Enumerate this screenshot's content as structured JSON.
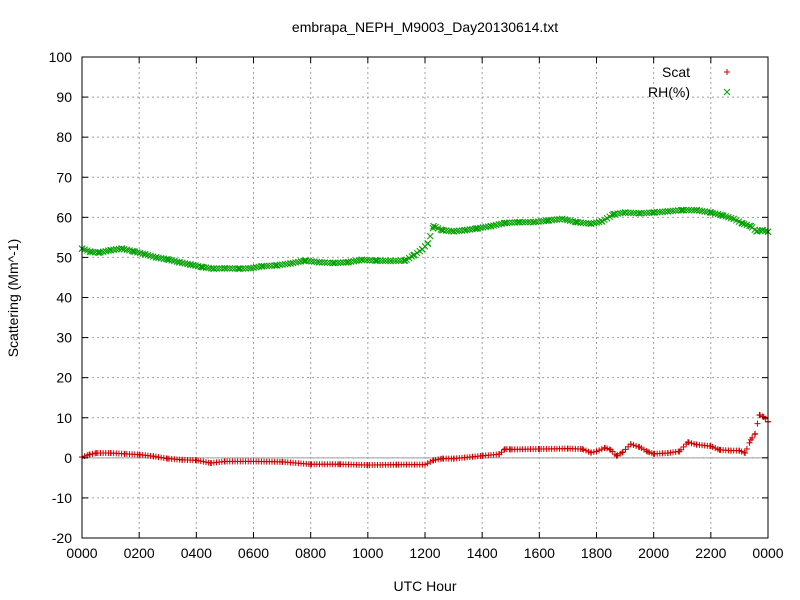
{
  "chart_data": {
    "type": "scatter",
    "title": "embrapa_NEPH_M9003_Day20130614.txt",
    "xlabel": "UTC Hour",
    "ylabel": "Scattering (Mm^-1)",
    "xlim": [
      0,
      24
    ],
    "ylim": [
      -20,
      100
    ],
    "x_ticks": [
      0,
      2,
      4,
      6,
      8,
      10,
      12,
      14,
      16,
      18,
      20,
      22,
      24
    ],
    "x_tick_labels": [
      "0000",
      "0200",
      "0400",
      "0600",
      "0800",
      "1000",
      "1200",
      "1400",
      "1600",
      "1800",
      "2000",
      "2200",
      "0000"
    ],
    "y_ticks": [
      -20,
      -10,
      0,
      10,
      20,
      30,
      40,
      50,
      60,
      70,
      80,
      90,
      100
    ],
    "grid": true,
    "zero_line": true,
    "legend_position": "top-right",
    "series": [
      {
        "name": "Scat",
        "marker": "+",
        "color": "#cc0000",
        "key_points": [
          [
            0.0,
            0.2
          ],
          [
            0.25,
            0.8
          ],
          [
            0.5,
            1.2
          ],
          [
            1.0,
            1.2
          ],
          [
            1.5,
            1.0
          ],
          [
            2.0,
            0.8
          ],
          [
            2.5,
            0.4
          ],
          [
            3.0,
            -0.2
          ],
          [
            3.5,
            -0.5
          ],
          [
            4.0,
            -0.6
          ],
          [
            4.5,
            -1.3
          ],
          [
            5.0,
            -0.9
          ],
          [
            6.0,
            -0.9
          ],
          [
            7.0,
            -1.0
          ],
          [
            8.0,
            -1.6
          ],
          [
            9.0,
            -1.6
          ],
          [
            10.0,
            -1.8
          ],
          [
            11.0,
            -1.7
          ],
          [
            12.0,
            -1.7
          ],
          [
            12.3,
            -0.6
          ],
          [
            12.6,
            -0.2
          ],
          [
            13.0,
            -0.2
          ],
          [
            14.0,
            0.5
          ],
          [
            14.6,
            0.9
          ],
          [
            14.8,
            2.2
          ],
          [
            15.0,
            2.1
          ],
          [
            16.0,
            2.2
          ],
          [
            17.0,
            2.3
          ],
          [
            17.5,
            2.2
          ],
          [
            17.8,
            1.3
          ],
          [
            18.0,
            1.6
          ],
          [
            18.3,
            2.5
          ],
          [
            18.5,
            2.0
          ],
          [
            18.7,
            0.5
          ],
          [
            18.9,
            1.3
          ],
          [
            19.2,
            3.4
          ],
          [
            19.5,
            2.7
          ],
          [
            19.8,
            1.5
          ],
          [
            20.0,
            1.0
          ],
          [
            20.5,
            1.2
          ],
          [
            20.9,
            1.6
          ],
          [
            21.2,
            3.9
          ],
          [
            21.5,
            3.3
          ],
          [
            22.0,
            2.9
          ],
          [
            22.3,
            2.0
          ],
          [
            22.7,
            1.8
          ],
          [
            23.0,
            1.8
          ],
          [
            23.2,
            1.2
          ],
          [
            23.4,
            4.5
          ],
          [
            23.55,
            6.0
          ],
          [
            23.7,
            10.7
          ],
          [
            23.85,
            10.2
          ],
          [
            24.0,
            9.0
          ]
        ]
      },
      {
        "name": "RH(%)",
        "marker": "x",
        "color": "#00a000",
        "key_points": [
          [
            0.0,
            52.2
          ],
          [
            0.3,
            51.4
          ],
          [
            0.6,
            51.2
          ],
          [
            1.0,
            51.8
          ],
          [
            1.4,
            52.2
          ],
          [
            1.8,
            51.5
          ],
          [
            2.2,
            50.8
          ],
          [
            2.6,
            50.0
          ],
          [
            3.0,
            49.5
          ],
          [
            3.4,
            48.8
          ],
          [
            3.8,
            48.2
          ],
          [
            4.2,
            47.6
          ],
          [
            4.6,
            47.2
          ],
          [
            5.0,
            47.3
          ],
          [
            5.5,
            47.2
          ],
          [
            5.9,
            47.3
          ],
          [
            6.3,
            47.8
          ],
          [
            6.8,
            48.0
          ],
          [
            7.3,
            48.5
          ],
          [
            7.8,
            49.2
          ],
          [
            8.3,
            48.8
          ],
          [
            8.8,
            48.6
          ],
          [
            9.3,
            48.8
          ],
          [
            9.8,
            49.4
          ],
          [
            10.3,
            49.2
          ],
          [
            10.8,
            49.1
          ],
          [
            11.3,
            49.2
          ],
          [
            11.6,
            50.5
          ],
          [
            11.9,
            52.0
          ],
          [
            12.1,
            53.5
          ],
          [
            12.3,
            57.8
          ],
          [
            12.6,
            56.8
          ],
          [
            13.0,
            56.5
          ],
          [
            13.4,
            56.8
          ],
          [
            13.8,
            57.2
          ],
          [
            14.3,
            57.8
          ],
          [
            14.8,
            58.6
          ],
          [
            15.3,
            58.8
          ],
          [
            15.8,
            58.8
          ],
          [
            16.3,
            59.2
          ],
          [
            16.8,
            59.6
          ],
          [
            17.3,
            58.8
          ],
          [
            17.8,
            58.4
          ],
          [
            18.2,
            59.0
          ],
          [
            18.6,
            60.8
          ],
          [
            19.0,
            61.2
          ],
          [
            19.5,
            61.0
          ],
          [
            20.0,
            61.2
          ],
          [
            20.5,
            61.5
          ],
          [
            21.0,
            61.8
          ],
          [
            21.5,
            61.8
          ],
          [
            22.0,
            61.2
          ],
          [
            22.4,
            60.5
          ],
          [
            22.8,
            59.6
          ],
          [
            23.1,
            58.5
          ],
          [
            23.4,
            57.8
          ],
          [
            23.6,
            56.5
          ],
          [
            23.8,
            56.8
          ],
          [
            24.0,
            56.4
          ]
        ]
      }
    ]
  }
}
